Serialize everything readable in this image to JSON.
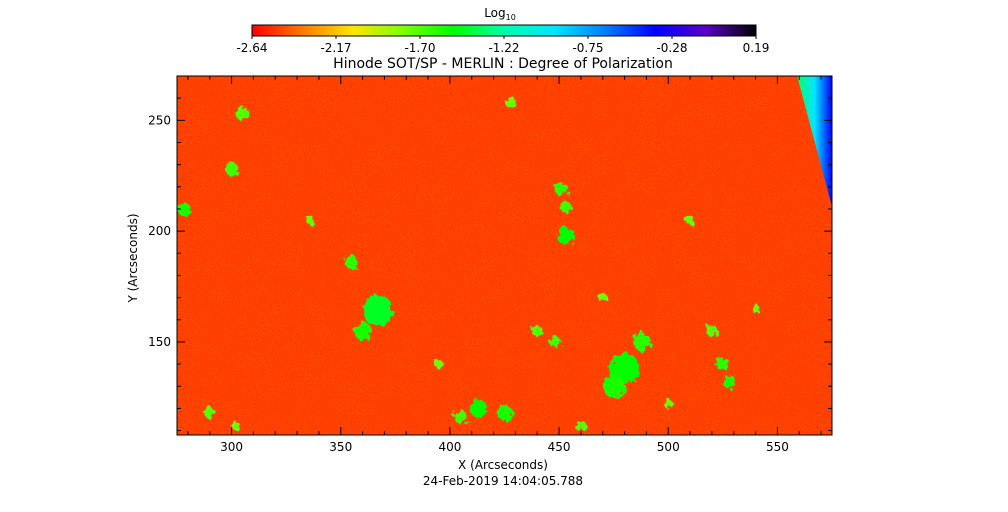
{
  "chart_data": {
    "type": "heatmap",
    "title": "Hinode SOT/SP - MERLIN : Degree of Polarization",
    "xlabel": "X (Arcseconds)",
    "ylabel": "Y (Arcseconds)",
    "timestamp": "24-Feb-2019 14:04:05.788",
    "xlim": [
      275,
      575
    ],
    "ylim": [
      108,
      270
    ],
    "x_ticks": [
      300,
      350,
      400,
      450,
      500,
      550
    ],
    "y_ticks": [
      150,
      200,
      250
    ],
    "grid": false,
    "colorbar": {
      "label_base": "Log",
      "label_sub": "10",
      "position": "top",
      "range": [
        -2.64,
        0.19
      ],
      "ticks": [
        "-2.64",
        "-2.17",
        "-1.70",
        "-1.22",
        "-0.75",
        "-0.28",
        "0.19"
      ],
      "colormap": [
        "#ff0000",
        "#ff7a00",
        "#ffe600",
        "#7dff00",
        "#00ff00",
        "#00ffaa",
        "#00e5ff",
        "#0080ff",
        "#0000ff",
        "#5a00c8",
        "#000000"
      ]
    },
    "background_value": -2.5,
    "features": [
      {
        "x": 367,
        "y": 164,
        "r": 7,
        "value": -1.45
      },
      {
        "x": 360,
        "y": 155,
        "r": 4,
        "value": -1.55
      },
      {
        "x": 355,
        "y": 186,
        "r": 3,
        "value": -1.6
      },
      {
        "x": 480,
        "y": 138,
        "r": 7,
        "value": -1.5
      },
      {
        "x": 475,
        "y": 130,
        "r": 5,
        "value": -1.55
      },
      {
        "x": 488,
        "y": 150,
        "r": 4,
        "value": -1.6
      },
      {
        "x": 453,
        "y": 198,
        "r": 4,
        "value": -1.5
      },
      {
        "x": 451,
        "y": 219,
        "r": 3,
        "value": -1.6
      },
      {
        "x": 453,
        "y": 211,
        "r": 2.5,
        "value": -1.65
      },
      {
        "x": 525,
        "y": 140,
        "r": 3,
        "value": -1.6
      },
      {
        "x": 528,
        "y": 132,
        "r": 3,
        "value": -1.55
      },
      {
        "x": 520,
        "y": 155,
        "r": 2.5,
        "value": -1.7
      },
      {
        "x": 413,
        "y": 120,
        "r": 4,
        "value": -1.5
      },
      {
        "x": 425,
        "y": 118,
        "r": 3.5,
        "value": -1.55
      },
      {
        "x": 405,
        "y": 116,
        "r": 3,
        "value": -1.65
      },
      {
        "x": 278,
        "y": 210,
        "r": 3,
        "value": -1.55
      },
      {
        "x": 300,
        "y": 228,
        "r": 3,
        "value": -1.65
      },
      {
        "x": 305,
        "y": 253,
        "r": 3,
        "value": -1.7
      },
      {
        "x": 428,
        "y": 258,
        "r": 2.5,
        "value": -1.75
      },
      {
        "x": 440,
        "y": 155,
        "r": 2.5,
        "value": -1.7
      },
      {
        "x": 448,
        "y": 150,
        "r": 2.5,
        "value": -1.65
      },
      {
        "x": 395,
        "y": 140,
        "r": 2,
        "value": -1.75
      },
      {
        "x": 336,
        "y": 205,
        "r": 2,
        "value": -1.75
      },
      {
        "x": 510,
        "y": 205,
        "r": 2,
        "value": -1.75
      },
      {
        "x": 290,
        "y": 118,
        "r": 2.5,
        "value": -1.7
      },
      {
        "x": 302,
        "y": 112,
        "r": 2,
        "value": -1.75
      },
      {
        "x": 460,
        "y": 112,
        "r": 2.5,
        "value": -1.7
      },
      {
        "x": 500,
        "y": 122,
        "r": 2,
        "value": -1.75
      },
      {
        "x": 470,
        "y": 170,
        "r": 2,
        "value": -1.75
      },
      {
        "x": 540,
        "y": 165,
        "r": 2,
        "value": -1.75
      }
    ],
    "edge_feature": {
      "description_values": [
        -1.22,
        -0.75,
        -0.28
      ],
      "x_top": 559,
      "x_bottom": 575,
      "y_top": 270,
      "y_bottom": 211
    }
  }
}
